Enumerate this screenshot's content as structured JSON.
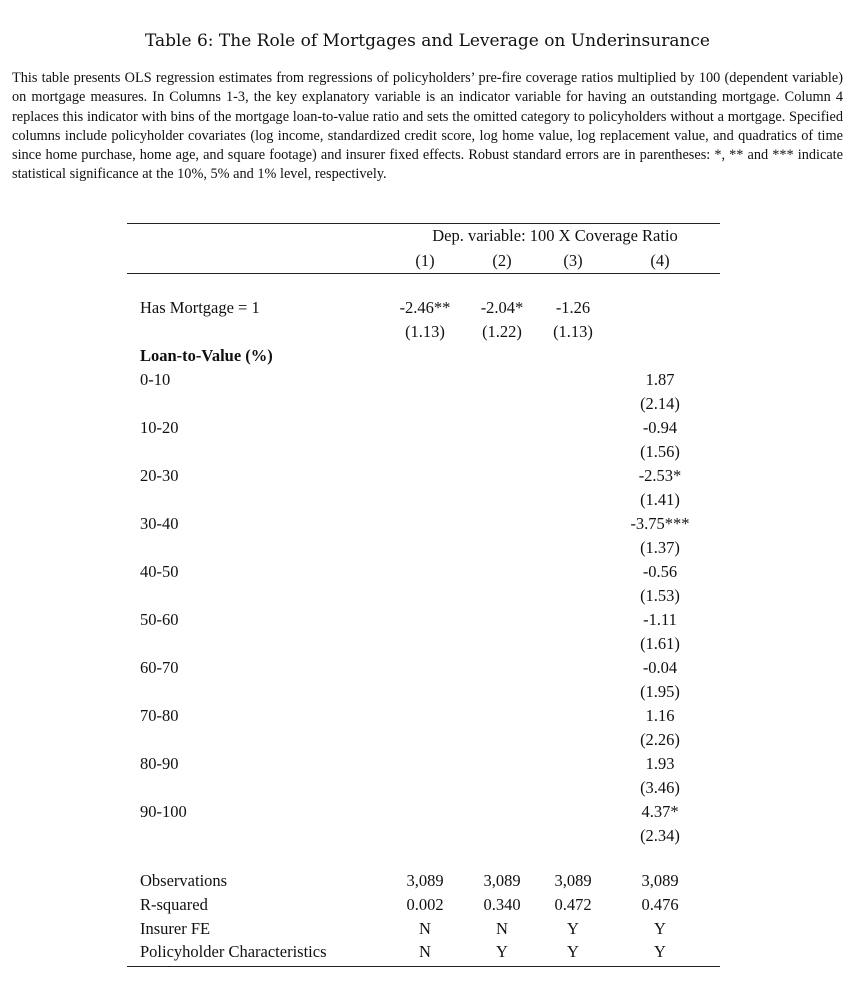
{
  "title": "Table 6: The Role of Mortgages and Leverage on Underinsurance",
  "caption": "This table presents OLS regression estimates from regressions of policyholders’ pre-fire coverage ratios multiplied by 100 (dependent variable) on mortgage measures. In Columns 1-3, the key explanatory variable is an indicator variable for having an outstanding mortgage. Column 4 replaces this indicator with bins of the mortgage loan-to-value ratio and sets the omitted category to policyholders without a mortgage. Specified columns include policyholder covariates (log income, standardized credit score, log home value, log replacement value, and quadratics of time since home purchase, home age, and square footage) and insurer fixed effects. Robust standard errors are in parentheses: *, ** and *** indicate statistical significance at the 10%, 5% and 1% level, respectively.",
  "table": {
    "dep_var_header": "Dep. variable: 100 X Coverage Ratio",
    "columns": [
      "(1)",
      "(2)",
      "(3)",
      "(4)"
    ],
    "has_mortgage": {
      "label": "Has Mortgage = 1",
      "coef": [
        "-2.46**",
        "-2.04*",
        "-1.26",
        ""
      ],
      "se": [
        "(1.13)",
        "(1.22)",
        "(1.13)",
        ""
      ]
    },
    "ltv_header": "Loan-to-Value (%)",
    "ltv_rows": [
      {
        "label": "0-10",
        "coef": "1.87",
        "se": "(2.14)"
      },
      {
        "label": "10-20",
        "coef": "-0.94",
        "se": "(1.56)"
      },
      {
        "label": "20-30",
        "coef": "-2.53*",
        "se": "(1.41)"
      },
      {
        "label": "30-40",
        "coef": "-3.75***",
        "se": "(1.37)"
      },
      {
        "label": "40-50",
        "coef": "-0.56",
        "se": "(1.53)"
      },
      {
        "label": "50-60",
        "coef": "-1.11",
        "se": "(1.61)"
      },
      {
        "label": "60-70",
        "coef": "-0.04",
        "se": "(1.95)"
      },
      {
        "label": "70-80",
        "coef": "1.16",
        "se": "(2.26)"
      },
      {
        "label": "80-90",
        "coef": "1.93",
        "se": "(3.46)"
      },
      {
        "label": "90-100",
        "coef": "4.37*",
        "se": "(2.34)"
      }
    ],
    "stats": [
      {
        "label": "Observations",
        "values": [
          "3,089",
          "3,089",
          "3,089",
          "3,089"
        ]
      },
      {
        "label": "R-squared",
        "values": [
          "0.002",
          "0.340",
          "0.472",
          "0.476"
        ]
      },
      {
        "label": "Insurer FE",
        "values": [
          "N",
          "N",
          "Y",
          "Y"
        ]
      },
      {
        "label": "Policyholder Characteristics",
        "values": [
          "N",
          "Y",
          "Y",
          "Y"
        ]
      }
    ]
  }
}
